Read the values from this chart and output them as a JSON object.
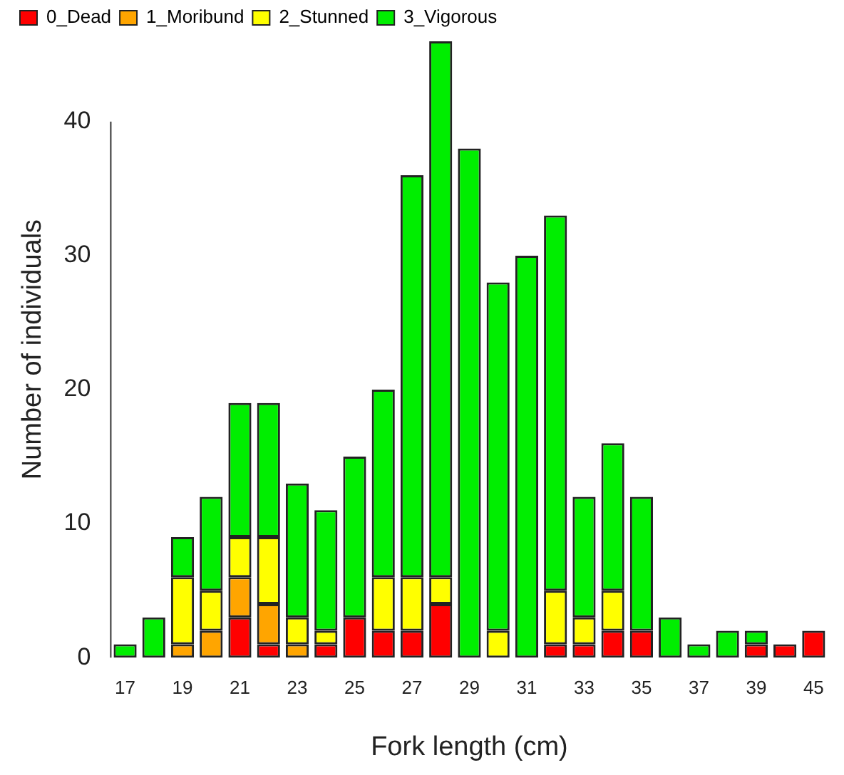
{
  "chart_data": {
    "type": "bar",
    "stacked": true,
    "xlabel": "Fork length (cm)",
    "ylabel": "Number of individuals",
    "categories": [
      "17",
      null,
      "19",
      null,
      "21",
      null,
      "23",
      null,
      "25",
      null,
      "27",
      null,
      "29",
      null,
      "31",
      null,
      "33",
      null,
      "35",
      null,
      "37",
      null,
      "39",
      null,
      "45"
    ],
    "series": [
      {
        "name": "0_Dead",
        "color": "#ff0000",
        "values": [
          0,
          0,
          0,
          0,
          3,
          1,
          0,
          1,
          3,
          2,
          2,
          4,
          0,
          0,
          0,
          1,
          1,
          2,
          2,
          0,
          0,
          0,
          1,
          1,
          2
        ]
      },
      {
        "name": "1_Moribund",
        "color": "#ffa500",
        "values": [
          0,
          0,
          1,
          2,
          3,
          3,
          1,
          0,
          0,
          0,
          0,
          0,
          0,
          0,
          0,
          0,
          0,
          0,
          0,
          0,
          0,
          0,
          0,
          0,
          0
        ]
      },
      {
        "name": "2_Stunned",
        "color": "#ffff00",
        "values": [
          0,
          0,
          5,
          3,
          3,
          5,
          2,
          1,
          0,
          4,
          4,
          2,
          0,
          2,
          0,
          4,
          2,
          3,
          0,
          0,
          0,
          0,
          0,
          0,
          0
        ]
      },
      {
        "name": "3_Vigorous",
        "color": "#00ee00",
        "values": [
          1,
          3,
          3,
          7,
          10,
          10,
          10,
          9,
          12,
          14,
          30,
          40,
          38,
          26,
          30,
          28,
          9,
          11,
          10,
          3,
          1,
          2,
          1,
          0,
          0
        ]
      }
    ],
    "ylim": [
      0,
      46
    ],
    "yticks": [
      0,
      10,
      20,
      30,
      40
    ],
    "grid": false,
    "legend": "top left"
  }
}
